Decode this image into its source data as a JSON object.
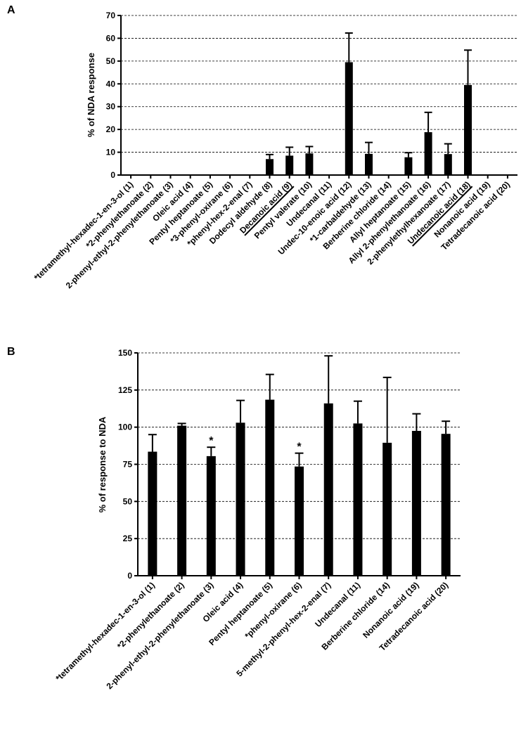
{
  "chart_data": [
    {
      "panel": "A",
      "type": "bar",
      "ylabel": "% of NDA response",
      "ylim": [
        0,
        70
      ],
      "yticks": [
        0,
        10,
        20,
        30,
        40,
        50,
        60,
        70
      ],
      "grid": "horizontal-dashed",
      "categories": [
        "*tetramethyl-hexadec-1-en-3-ol (1)",
        "*2-phenylethanoate (2)",
        "2-phenyl-ethyl-2-phenylethanoate (3)",
        "Oleic acid (4)",
        "Pentyl heptanoate (5)",
        "*3-phenyl-oxirane (6)",
        "*phenyl-hex-2-enal (7)",
        "Dodecyl aldehyde (8)",
        "Decanoic acid (9)",
        "Pentyl valerate (10)",
        "Undecanal (11)",
        "Undec-10-enoic acid (12)",
        "*1-carbaldehyde (13)",
        "Berberine chloride (14)",
        "Allyl heptanoate (15)",
        "Allyl 2-phenylethanoate (16)",
        "2-phenylethylhexanoate (17)",
        "Undecanoic acid (18)",
        "Nonanoic acid (19)",
        "Tetradecanoic acid (20)"
      ],
      "values": [
        0,
        0,
        0,
        0,
        0,
        0,
        0,
        7,
        8.5,
        9.5,
        0,
        49.5,
        9.3,
        0,
        7.8,
        18.8,
        9.2,
        39.5,
        0,
        0
      ],
      "errors": [
        0,
        0,
        0,
        0,
        0,
        0,
        0,
        2,
        3.7,
        3,
        0,
        12.8,
        5,
        0,
        2,
        8.7,
        4.5,
        15.3,
        0,
        0
      ],
      "underlined": [
        8,
        17
      ]
    },
    {
      "panel": "B",
      "type": "bar",
      "ylabel": "% of response to NDA",
      "ylim": [
        0,
        150
      ],
      "yticks": [
        0,
        25,
        50,
        75,
        100,
        125,
        150
      ],
      "grid": "horizontal-dashed",
      "categories": [
        "*tetramethyl-hexadec-1-en-3-ol (1)",
        "*2-phenylethanoate (2)",
        "2-phenyl-ethyl-2-phenylethanoate (3)",
        "Oleic acid (4)",
        "Pentyl heptanoate (5)",
        "*phenyl-oxirane (6)",
        "5-methyl-2-phenyl-hex-2-enal (7)",
        "Undecanal (11)",
        "Berberine chloride (14)",
        "Nonanoic acid (19)",
        "Tetradecanoic acid (20)"
      ],
      "values": [
        83.5,
        101,
        80.5,
        103,
        118.5,
        73.5,
        116,
        102.5,
        89.5,
        97.5,
        95.5
      ],
      "errors": [
        11.5,
        1.5,
        6,
        15,
        17,
        9,
        32,
        15,
        44,
        11.5,
        8.5
      ],
      "significance": [
        "",
        "",
        "*",
        "",
        "",
        "*",
        "",
        "",
        "",
        "",
        ""
      ]
    }
  ]
}
